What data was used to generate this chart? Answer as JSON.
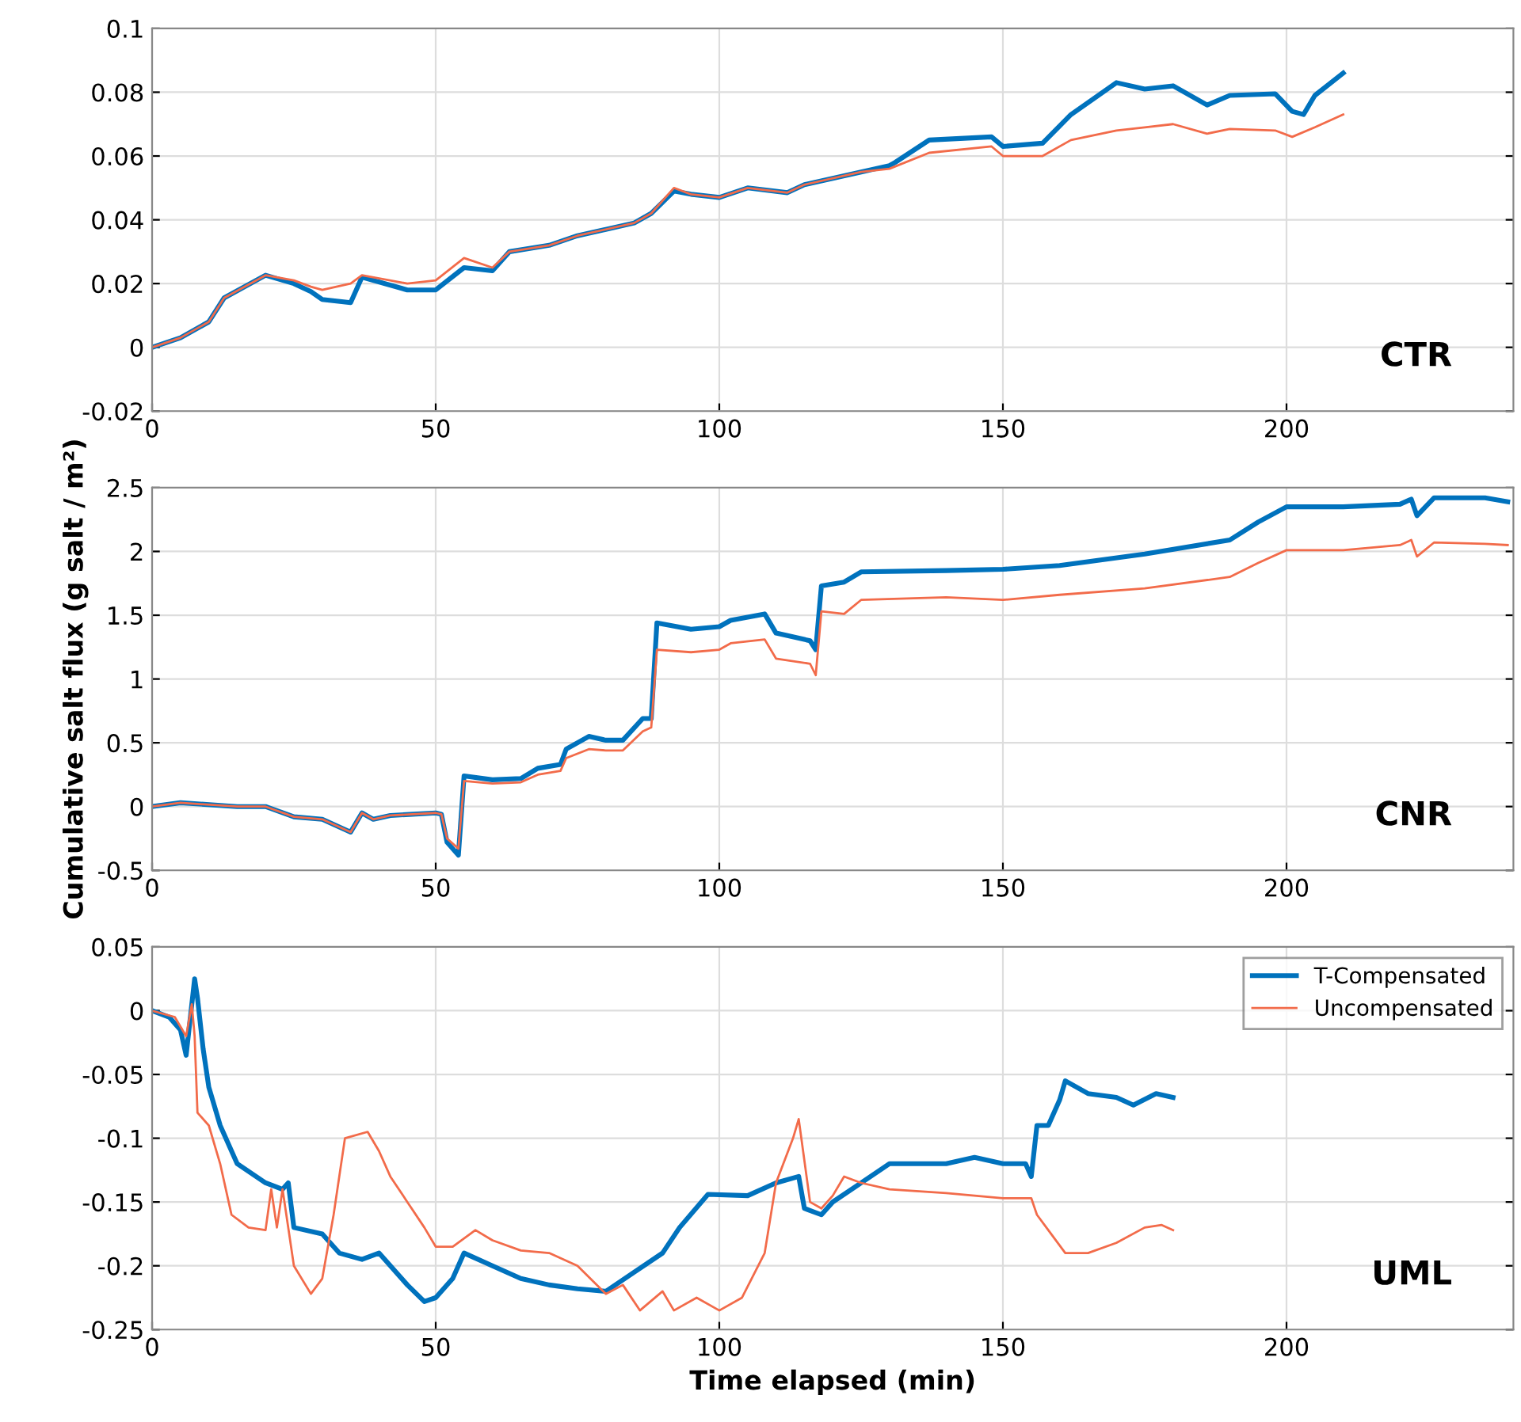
{
  "chart_data": [
    {
      "type": "line",
      "annotations": [
        "CTR"
      ],
      "xlim": [
        0,
        240
      ],
      "xticks": [
        0,
        50,
        100,
        150,
        200
      ],
      "ylim": [
        -0.02,
        0.1
      ],
      "yticks": [
        -0.02,
        0,
        0.02,
        0.04,
        0.06,
        0.08,
        0.1
      ],
      "grid": true,
      "line_style": "solid",
      "series": [
        {
          "color": "#0072bd",
          "x": [
            0,
            5,
            10,
            12.7,
            20,
            25,
            28,
            30,
            35,
            37,
            45,
            50,
            55,
            60,
            63,
            70,
            75,
            85,
            88,
            92,
            95,
            100,
            105,
            112,
            115,
            125,
            130,
            131,
            137,
            148,
            150,
            157,
            162,
            170,
            175,
            180,
            186,
            190,
            198,
            201,
            203,
            205,
            210
          ],
          "values": [
            0,
            0.003,
            0.008,
            0.0155,
            0.0226,
            0.02,
            0.0175,
            0.015,
            0.014,
            0.022,
            0.018,
            0.018,
            0.025,
            0.024,
            0.03,
            0.032,
            0.035,
            0.039,
            0.042,
            0.049,
            0.048,
            0.047,
            0.05,
            0.0485,
            0.051,
            0.055,
            0.057,
            0.058,
            0.065,
            0.066,
            0.063,
            0.064,
            0.073,
            0.083,
            0.081,
            0.082,
            0.076,
            0.079,
            0.0795,
            0.074,
            0.073,
            0.079,
            0.086
          ]
        },
        {
          "color": "#f26b4a",
          "x": [
            0,
            5,
            10,
            12.7,
            20,
            25,
            28,
            30,
            35,
            37,
            45,
            50,
            55,
            60,
            63,
            70,
            75,
            85,
            88,
            92,
            95,
            100,
            105,
            112,
            115,
            125,
            130,
            137,
            148,
            150,
            157,
            162,
            170,
            175,
            180,
            186,
            190,
            198,
            201,
            205,
            210
          ],
          "values": [
            0,
            0.003,
            0.008,
            0.0155,
            0.0226,
            0.021,
            0.019,
            0.018,
            0.02,
            0.0226,
            0.02,
            0.021,
            0.028,
            0.025,
            0.03,
            0.032,
            0.035,
            0.039,
            0.042,
            0.05,
            0.048,
            0.047,
            0.05,
            0.0485,
            0.051,
            0.055,
            0.056,
            0.061,
            0.063,
            0.06,
            0.06,
            0.065,
            0.068,
            0.069,
            0.07,
            0.067,
            0.0685,
            0.068,
            0.066,
            0.069,
            0.073
          ]
        }
      ]
    },
    {
      "type": "line",
      "ylabel": "Cumulative salt flux (g salt / m²)",
      "annotations": [
        "CNR"
      ],
      "xlim": [
        0,
        240
      ],
      "xticks": [
        0,
        50,
        100,
        150,
        200
      ],
      "ylim": [
        -0.5,
        2.5
      ],
      "yticks": [
        -0.5,
        0,
        0.5,
        1,
        1.5,
        2,
        2.5
      ],
      "grid": true,
      "line_style": "solid",
      "series": [
        {
          "color": "#0072bd",
          "x": [
            0,
            5,
            15,
            20,
            25,
            30,
            35,
            37,
            39,
            42,
            50,
            51,
            52,
            54,
            55,
            60,
            65,
            68,
            72,
            73,
            77,
            80,
            83,
            86.5,
            88,
            89,
            95,
            100,
            102,
            108,
            110,
            116,
            117,
            118,
            122,
            125,
            140,
            150,
            160,
            175,
            190,
            195,
            200,
            210,
            220,
            222,
            223,
            226,
            235,
            239
          ],
          "values": [
            0,
            0.03,
            0,
            0,
            -0.08,
            -0.1,
            -0.2,
            -0.05,
            -0.1,
            -0.07,
            -0.05,
            -0.06,
            -0.28,
            -0.38,
            0.24,
            0.21,
            0.22,
            0.3,
            0.33,
            0.45,
            0.55,
            0.52,
            0.52,
            0.69,
            0.69,
            1.44,
            1.39,
            1.41,
            1.46,
            1.51,
            1.36,
            1.3,
            1.23,
            1.73,
            1.76,
            1.84,
            1.85,
            1.86,
            1.89,
            1.98,
            2.09,
            2.23,
            2.35,
            2.35,
            2.37,
            2.41,
            2.28,
            2.42,
            2.42,
            2.39
          ]
        },
        {
          "color": "#f26b4a",
          "x": [
            0,
            5,
            15,
            20,
            25,
            30,
            35,
            37,
            39,
            42,
            50,
            51,
            52,
            54,
            55,
            60,
            65,
            68,
            72,
            73,
            77,
            80,
            83,
            86.5,
            88,
            89,
            95,
            100,
            102,
            108,
            110,
            116,
            117,
            118,
            122,
            125,
            140,
            150,
            160,
            175,
            190,
            195,
            200,
            210,
            220,
            222,
            223,
            226,
            235,
            239
          ],
          "values": [
            0,
            0.03,
            0,
            0,
            -0.08,
            -0.1,
            -0.2,
            -0.05,
            -0.1,
            -0.07,
            -0.05,
            -0.06,
            -0.25,
            -0.33,
            0.2,
            0.18,
            0.19,
            0.25,
            0.28,
            0.38,
            0.45,
            0.44,
            0.44,
            0.59,
            0.62,
            1.23,
            1.21,
            1.23,
            1.28,
            1.31,
            1.16,
            1.12,
            1.03,
            1.53,
            1.51,
            1.62,
            1.64,
            1.62,
            1.66,
            1.71,
            1.8,
            1.91,
            2.01,
            2.01,
            2.05,
            2.09,
            1.96,
            2.07,
            2.06,
            2.05
          ]
        }
      ]
    },
    {
      "type": "line",
      "xlabel": "Time elapsed (min)",
      "annotations": [
        "UML"
      ],
      "xlim": [
        0,
        240
      ],
      "xticks": [
        0,
        50,
        100,
        150,
        200
      ],
      "ylim": [
        -0.25,
        0.05
      ],
      "yticks": [
        -0.25,
        -0.2,
        -0.15,
        -0.1,
        -0.05,
        0,
        0.05
      ],
      "grid": true,
      "legend": "top right",
      "line_style": "solid",
      "series": [
        {
          "name": "T-Compensated",
          "color": "#0072bd",
          "x": [
            0,
            3,
            5,
            6,
            7,
            7.5,
            8,
            9,
            10,
            12,
            15,
            20,
            23,
            24,
            25,
            30,
            33,
            37,
            40,
            45,
            48,
            50,
            53,
            55,
            60,
            65,
            70,
            75,
            80,
            85,
            90,
            93,
            98,
            105,
            110,
            114,
            115,
            118,
            120,
            125,
            130,
            140,
            145,
            150,
            154,
            155,
            156,
            158,
            160,
            161,
            165,
            170,
            173,
            177,
            180
          ],
          "values": [
            0,
            -0.005,
            -0.015,
            -0.035,
            0.005,
            0.025,
            0.01,
            -0.03,
            -0.06,
            -0.09,
            -0.12,
            -0.135,
            -0.14,
            -0.135,
            -0.17,
            -0.175,
            -0.19,
            -0.195,
            -0.19,
            -0.215,
            -0.228,
            -0.225,
            -0.21,
            -0.19,
            -0.2,
            -0.21,
            -0.215,
            -0.218,
            -0.22,
            -0.205,
            -0.19,
            -0.17,
            -0.144,
            -0.145,
            -0.135,
            -0.13,
            -0.155,
            -0.16,
            -0.15,
            -0.135,
            -0.12,
            -0.12,
            -0.115,
            -0.12,
            -0.12,
            -0.13,
            -0.09,
            -0.09,
            -0.07,
            -0.055,
            -0.065,
            -0.068,
            -0.074,
            -0.065,
            -0.068
          ]
        },
        {
          "name": "Uncompensated",
          "color": "#f26b4a",
          "x": [
            0,
            4,
            6,
            7,
            7.5,
            8,
            10,
            12,
            14,
            17,
            20,
            21,
            22,
            23,
            25,
            28,
            30,
            32,
            34,
            38,
            40,
            42,
            45,
            48,
            50,
            53,
            57,
            60,
            65,
            70,
            75,
            80,
            83,
            86,
            90,
            92,
            96,
            100,
            104,
            108,
            110,
            113,
            114,
            116,
            118,
            120,
            122,
            125,
            130,
            140,
            150,
            155,
            156,
            158,
            161,
            165,
            170,
            175,
            178,
            180
          ],
          "values": [
            0,
            -0.005,
            -0.02,
            0.005,
            -0.02,
            -0.08,
            -0.09,
            -0.12,
            -0.16,
            -0.17,
            -0.172,
            -0.14,
            -0.17,
            -0.14,
            -0.2,
            -0.222,
            -0.21,
            -0.16,
            -0.1,
            -0.095,
            -0.11,
            -0.13,
            -0.15,
            -0.17,
            -0.185,
            -0.185,
            -0.172,
            -0.18,
            -0.188,
            -0.19,
            -0.2,
            -0.222,
            -0.215,
            -0.235,
            -0.22,
            -0.235,
            -0.225,
            -0.235,
            -0.225,
            -0.19,
            -0.135,
            -0.1,
            -0.085,
            -0.15,
            -0.155,
            -0.145,
            -0.13,
            -0.135,
            -0.14,
            -0.143,
            -0.147,
            -0.147,
            -0.16,
            -0.172,
            -0.19,
            -0.19,
            -0.182,
            -0.17,
            -0.168,
            -0.172
          ]
        }
      ]
    }
  ]
}
